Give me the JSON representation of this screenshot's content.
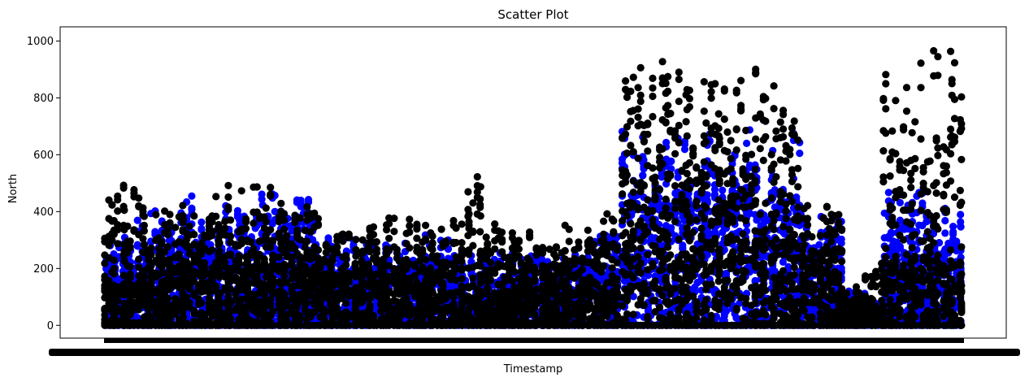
{
  "chart_data": {
    "type": "scatter",
    "title": "Scatter Plot",
    "xlabel": "Timestamp",
    "ylabel": "North",
    "ylim": [
      -45,
      1050
    ],
    "yticks": [
      0,
      200,
      400,
      600,
      800,
      1000
    ],
    "grid": false,
    "legend": "none",
    "x_tick_labels_overlapping": true,
    "colors": {
      "series_a": "#0000ff",
      "series_b": "#000000"
    },
    "series": [
      {
        "color": "#0000ff",
        "segments": [
          {
            "x0": 0.0,
            "x1": 0.038,
            "max": 330,
            "dense": 160
          },
          {
            "x0": 0.038,
            "x1": 0.08,
            "max": 420,
            "dense": 200
          },
          {
            "x0": 0.08,
            "x1": 0.25,
            "max": 470,
            "dense": 220
          },
          {
            "x0": 0.25,
            "x1": 0.3,
            "max": 315,
            "dense": 180
          },
          {
            "x0": 0.3,
            "x1": 0.42,
            "max": 320,
            "dense": 170
          },
          {
            "x0": 0.42,
            "x1": 0.56,
            "max": 260,
            "dense": 150
          },
          {
            "x0": 0.56,
            "x1": 0.6,
            "max": 330,
            "dense": 170
          },
          {
            "x0": 0.6,
            "x1": 0.75,
            "max": 690,
            "dense": 380
          },
          {
            "x0": 0.75,
            "x1": 0.81,
            "max": 690,
            "dense": 300
          },
          {
            "x0": 0.81,
            "x1": 0.86,
            "max": 420,
            "dense": 200
          },
          {
            "x0": 0.86,
            "x1": 0.885,
            "max": 130,
            "dense": 60
          },
          {
            "x0": 0.885,
            "x1": 0.905,
            "max": 80,
            "dense": 40
          },
          {
            "x0": 0.905,
            "x1": 1.0,
            "max": 470,
            "dense": 210
          }
        ]
      },
      {
        "color": "#000000",
        "segments": [
          {
            "x0": 0.0,
            "x1": 0.038,
            "max": 520,
            "dense": 150
          },
          {
            "x0": 0.038,
            "x1": 0.08,
            "max": 460,
            "dense": 180
          },
          {
            "x0": 0.08,
            "x1": 0.25,
            "max": 495,
            "dense": 200
          },
          {
            "x0": 0.25,
            "x1": 0.3,
            "max": 330,
            "dense": 160
          },
          {
            "x0": 0.3,
            "x1": 0.42,
            "max": 385,
            "dense": 160
          },
          {
            "x0": 0.42,
            "x1": 0.445,
            "max": 530,
            "dense": 150
          },
          {
            "x0": 0.445,
            "x1": 0.56,
            "max": 360,
            "dense": 140
          },
          {
            "x0": 0.56,
            "x1": 0.6,
            "max": 400,
            "dense": 160
          },
          {
            "x0": 0.6,
            "x1": 0.75,
            "max": 930,
            "dense": 420
          },
          {
            "x0": 0.75,
            "x1": 0.81,
            "max": 975,
            "dense": 300
          },
          {
            "x0": 0.81,
            "x1": 0.86,
            "max": 460,
            "dense": 200
          },
          {
            "x0": 0.86,
            "x1": 0.885,
            "max": 140,
            "dense": 50
          },
          {
            "x0": 0.885,
            "x1": 0.905,
            "max": 270,
            "dense": 60
          },
          {
            "x0": 0.905,
            "x1": 1.0,
            "max": 1005,
            "dense": 230
          }
        ]
      }
    ]
  }
}
